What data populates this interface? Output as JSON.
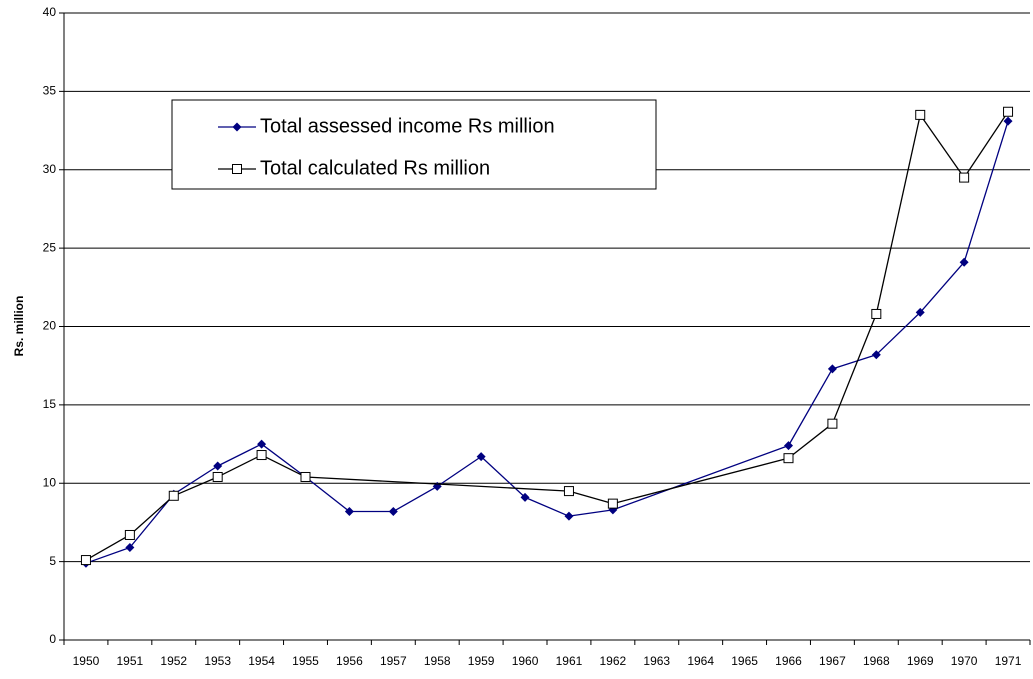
{
  "chart_data": {
    "type": "line",
    "y_label": "Rs. million",
    "categories": [
      "1950",
      "1951",
      "1952",
      "1953",
      "1954",
      "1955",
      "1956",
      "1957",
      "1958",
      "1959",
      "1960",
      "1961",
      "1962",
      "1963",
      "1964",
      "1965",
      "1966",
      "1967",
      "1968",
      "1969",
      "1970",
      "1971"
    ],
    "series": [
      {
        "name": "Total assessed income Rs million",
        "color": "#000080",
        "marker": "diamond",
        "values": [
          4.9,
          5.9,
          9.3,
          11.1,
          12.5,
          10.4,
          8.2,
          8.2,
          9.8,
          11.7,
          9.1,
          7.9,
          8.3,
          null,
          null,
          null,
          12.4,
          17.3,
          18.2,
          20.9,
          24.1,
          33.1
        ]
      },
      {
        "name": "Total calculated Rs million",
        "color": "#000000",
        "marker": "square",
        "values": [
          5.1,
          6.7,
          9.2,
          10.4,
          11.8,
          10.4,
          null,
          null,
          null,
          null,
          null,
          9.5,
          8.7,
          null,
          null,
          null,
          11.6,
          13.8,
          20.8,
          33.5,
          29.5,
          33.7
        ]
      }
    ],
    "connect_gaps": true,
    "ylim": [
      0,
      40
    ],
    "yticks": [
      0,
      5,
      10,
      15,
      20,
      25,
      30,
      35,
      40
    ],
    "grid": true
  }
}
